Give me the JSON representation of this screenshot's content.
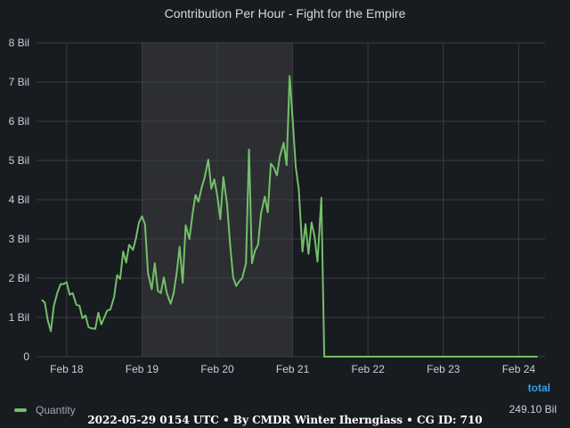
{
  "panel": {
    "title": "Contribution Per Hour - Fight for the Empire",
    "footer": "2022-05-29 0154 UTC • By CMDR Winter Iherngiass • CG ID: 710"
  },
  "legend": {
    "column_header": "total",
    "series_name": "Quantity",
    "series_total": "249.10 Bil"
  },
  "colors": {
    "background": "#181b1f",
    "series": "#73bf69",
    "highlight_band": "#2c2e32",
    "grid": "#3a3d42",
    "axis_text": "#c7d0d9",
    "legend_header": "#33a2e5"
  },
  "chart_data": {
    "type": "line",
    "title": "Contribution Per Hour - Fight for the Empire",
    "xlabel": "",
    "ylabel": "",
    "x_unit": "days (Feb)",
    "xlim": [
      17.6,
      24.35
    ],
    "ylim": [
      0,
      8
    ],
    "y_ticks": [
      0,
      1,
      2,
      3,
      4,
      5,
      6,
      7,
      8
    ],
    "y_tick_labels": [
      "0",
      "1 Bil",
      "2 Bil",
      "3 Bil",
      "4 Bil",
      "5 Bil",
      "6 Bil",
      "7 Bil",
      "8 Bil"
    ],
    "x_ticks": [
      18,
      19,
      20,
      21,
      22,
      23,
      24
    ],
    "x_tick_labels": [
      "Feb 18",
      "Feb 19",
      "Feb 20",
      "Feb 21",
      "Feb 22",
      "Feb 23",
      "Feb 24"
    ],
    "highlight_range": [
      19.0,
      21.0
    ],
    "grid": true,
    "legend_position": "bottom-left",
    "series": [
      {
        "name": "Quantity",
        "x": [
          17.67,
          17.71,
          17.75,
          17.79,
          17.83,
          17.88,
          17.92,
          17.96,
          18.0,
          18.04,
          18.08,
          18.13,
          18.17,
          18.21,
          18.25,
          18.29,
          18.33,
          18.38,
          18.42,
          18.46,
          18.5,
          18.54,
          18.58,
          18.63,
          18.67,
          18.71,
          18.75,
          18.79,
          18.83,
          18.88,
          18.92,
          18.96,
          19.0,
          19.04,
          19.08,
          19.13,
          19.17,
          19.21,
          19.25,
          19.29,
          19.33,
          19.38,
          19.42,
          19.46,
          19.5,
          19.54,
          19.58,
          19.63,
          19.67,
          19.71,
          19.75,
          19.79,
          19.83,
          19.88,
          19.92,
          19.96,
          20.0,
          20.04,
          20.08,
          20.13,
          20.17,
          20.21,
          20.25,
          20.29,
          20.33,
          20.38,
          20.42,
          20.46,
          20.5,
          20.54,
          20.58,
          20.63,
          20.67,
          20.71,
          20.75,
          20.79,
          20.83,
          20.88,
          20.92,
          20.96,
          21.0,
          21.04,
          21.08,
          21.13,
          21.17,
          21.21,
          21.25,
          21.29,
          21.33,
          21.38,
          21.42,
          22.0,
          22.5,
          23.0,
          23.5,
          24.0,
          24.25
        ],
        "values": [
          1.45,
          1.38,
          0.92,
          0.65,
          1.3,
          1.65,
          1.85,
          1.85,
          1.9,
          1.58,
          1.62,
          1.32,
          1.3,
          0.98,
          1.05,
          0.75,
          0.72,
          0.71,
          1.12,
          0.82,
          1.0,
          1.18,
          1.2,
          1.52,
          2.08,
          1.98,
          2.68,
          2.4,
          2.85,
          2.72,
          3.02,
          3.42,
          3.58,
          3.38,
          2.12,
          1.72,
          2.38,
          1.68,
          1.62,
          2.02,
          1.62,
          1.35,
          1.62,
          2.12,
          2.8,
          1.88,
          3.35,
          3.0,
          3.62,
          4.12,
          3.95,
          4.3,
          4.55,
          5.02,
          4.28,
          4.52,
          4.1,
          3.5,
          4.58,
          3.88,
          2.85,
          2.02,
          1.8,
          1.92,
          2.0,
          2.38,
          5.28,
          2.38,
          2.7,
          2.85,
          3.65,
          4.08,
          3.68,
          4.92,
          4.82,
          4.62,
          5.1,
          5.45,
          4.88,
          7.15,
          6.05,
          4.85,
          4.28,
          2.68,
          3.38,
          2.62,
          3.42,
          3.08,
          2.42,
          4.05,
          0.0,
          0.0,
          0.0,
          0.0,
          0.0,
          0.0,
          0.0
        ]
      }
    ]
  }
}
